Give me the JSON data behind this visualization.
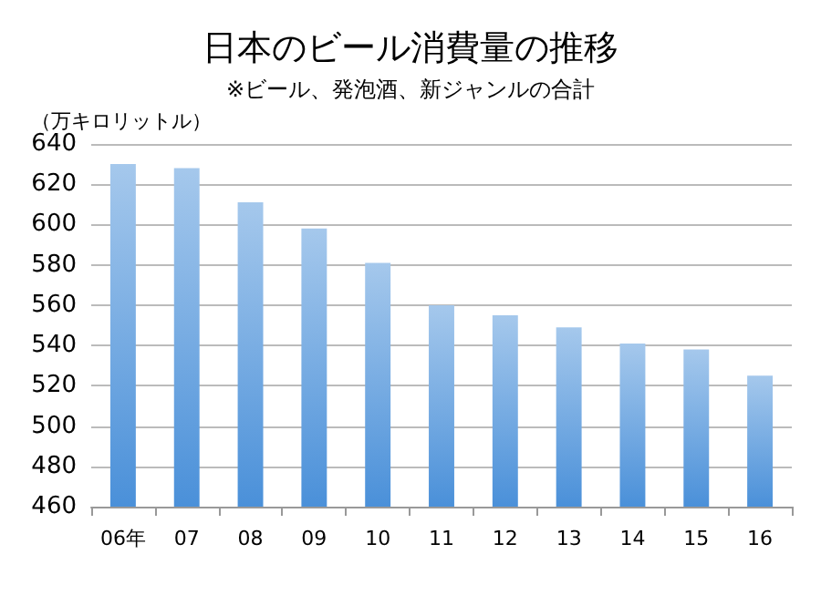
{
  "chart_data": {
    "type": "bar",
    "title": "日本のビール消費量の推移",
    "subtitle": "※ビール、発泡酒、新ジャンルの合計",
    "ylabel": "（万キロリットル）",
    "categories": [
      "06年",
      "07",
      "08",
      "09",
      "10",
      "11",
      "12",
      "13",
      "14",
      "15",
      "16"
    ],
    "values": [
      630,
      628,
      611,
      598,
      581,
      560,
      555,
      549,
      541,
      538,
      525
    ],
    "color": "#4a90d9",
    "ylim": [
      460,
      640
    ],
    "yticks": [
      460,
      480,
      500,
      520,
      540,
      560,
      580,
      600,
      620,
      640
    ],
    "grid": "y"
  }
}
